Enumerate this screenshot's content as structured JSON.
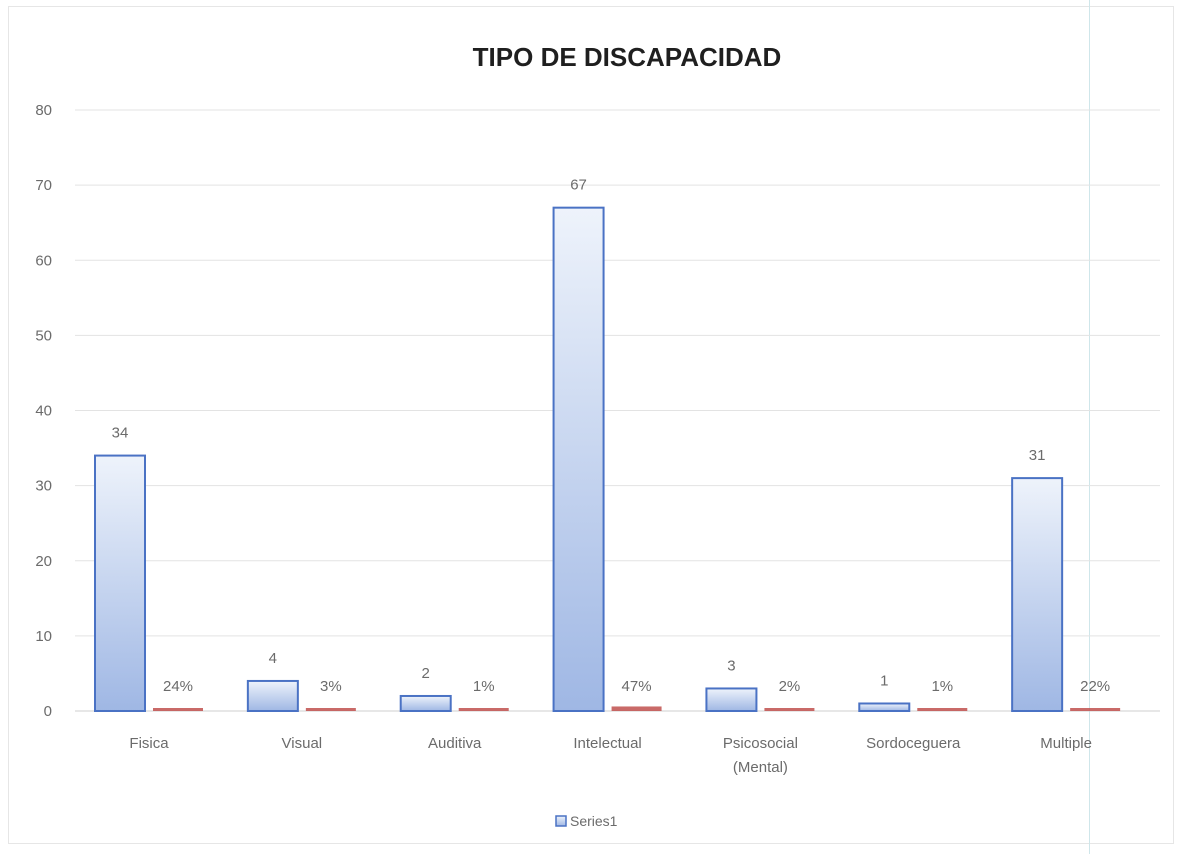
{
  "chart_data": {
    "type": "bar",
    "title": "TIPO DE DISCAPACIDAD",
    "categories": [
      [
        "Fisica"
      ],
      [
        "Visual"
      ],
      [
        "Auditiva"
      ],
      [
        "Intelectual"
      ],
      [
        "Psicosocial",
        "(Mental)"
      ],
      [
        "Sordoceguera"
      ],
      [
        "Multiple"
      ]
    ],
    "series": [
      {
        "name": "Series1",
        "values": [
          34,
          4,
          2,
          67,
          3,
          1,
          31
        ],
        "labels": [
          "34",
          "4",
          "2",
          "67",
          "3",
          "1",
          "31"
        ],
        "color": "#4a72c4"
      },
      {
        "values": [
          0.24,
          0.03,
          0.01,
          0.47,
          0.02,
          0.01,
          0.22
        ],
        "labels": [
          "24%",
          "3%",
          "1%",
          "47%",
          "2%",
          "1%",
          "22%"
        ],
        "color": "#c0504d"
      }
    ],
    "yticks": [
      "0",
      "10",
      "20",
      "30",
      "40",
      "50",
      "60",
      "70",
      "80"
    ],
    "ylim": [
      0,
      80
    ],
    "grid": true,
    "legend": {
      "position": "bottom",
      "entries": [
        "Series1"
      ]
    },
    "xlabel": "",
    "ylabel": ""
  }
}
